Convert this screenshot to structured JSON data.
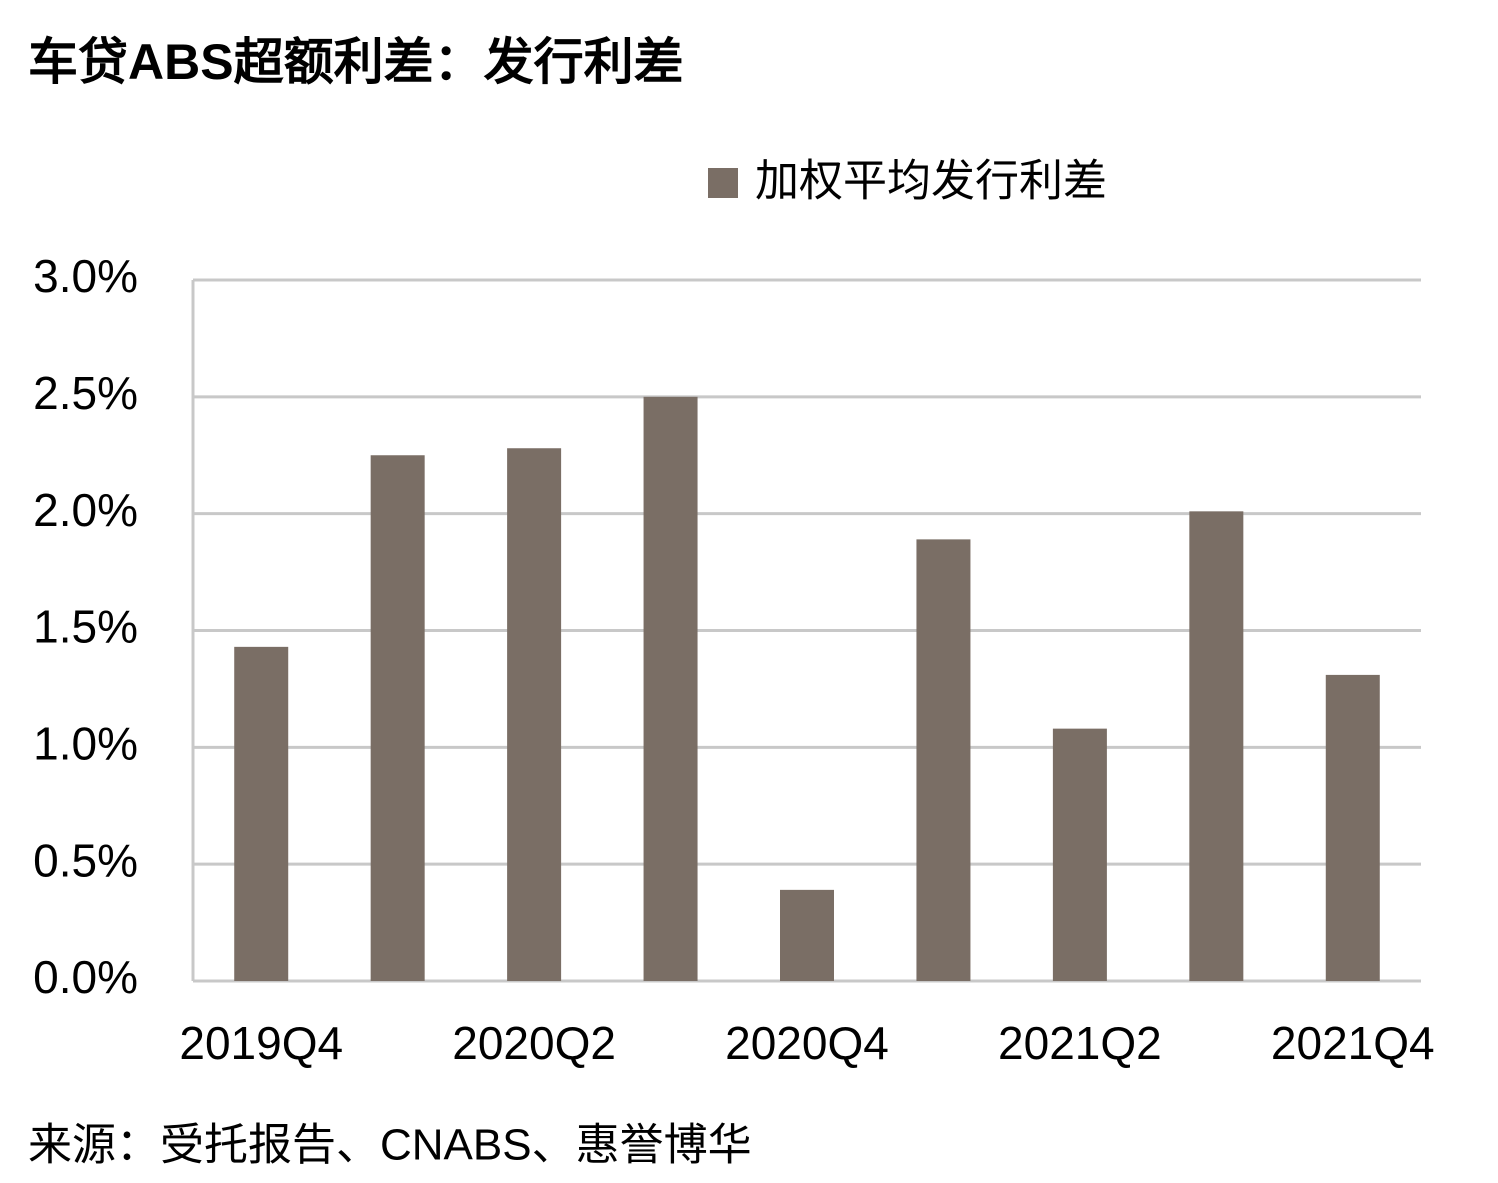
{
  "chart_data": {
    "type": "bar",
    "title": "车贷ABS超额利差：发行利差",
    "categories": [
      "2019Q4",
      null,
      "2020Q2",
      null,
      "2020Q4",
      null,
      "2021Q2",
      null,
      "2021Q4"
    ],
    "series": [
      {
        "name": "加权平均发行利差",
        "color": "#7a6e65",
        "values": [
          1.43,
          2.25,
          2.28,
          2.5,
          0.39,
          1.89,
          1.08,
          2.01,
          1.31
        ]
      }
    ],
    "ylim": [
      0,
      3
    ],
    "yticks": [
      {
        "value": 0,
        "label": "0.0%"
      },
      {
        "value": 0.5,
        "label": "0.5%"
      },
      {
        "value": 1,
        "label": "1.0%"
      },
      {
        "value": 1.5,
        "label": "1.5%"
      },
      {
        "value": 2,
        "label": "2.0%"
      },
      {
        "value": 2.5,
        "label": "2.5%"
      },
      {
        "value": 3,
        "label": "3.0%"
      }
    ],
    "grid": true,
    "legend": "top",
    "source": "来源：受托报告、CNABS、惠誉博华"
  }
}
